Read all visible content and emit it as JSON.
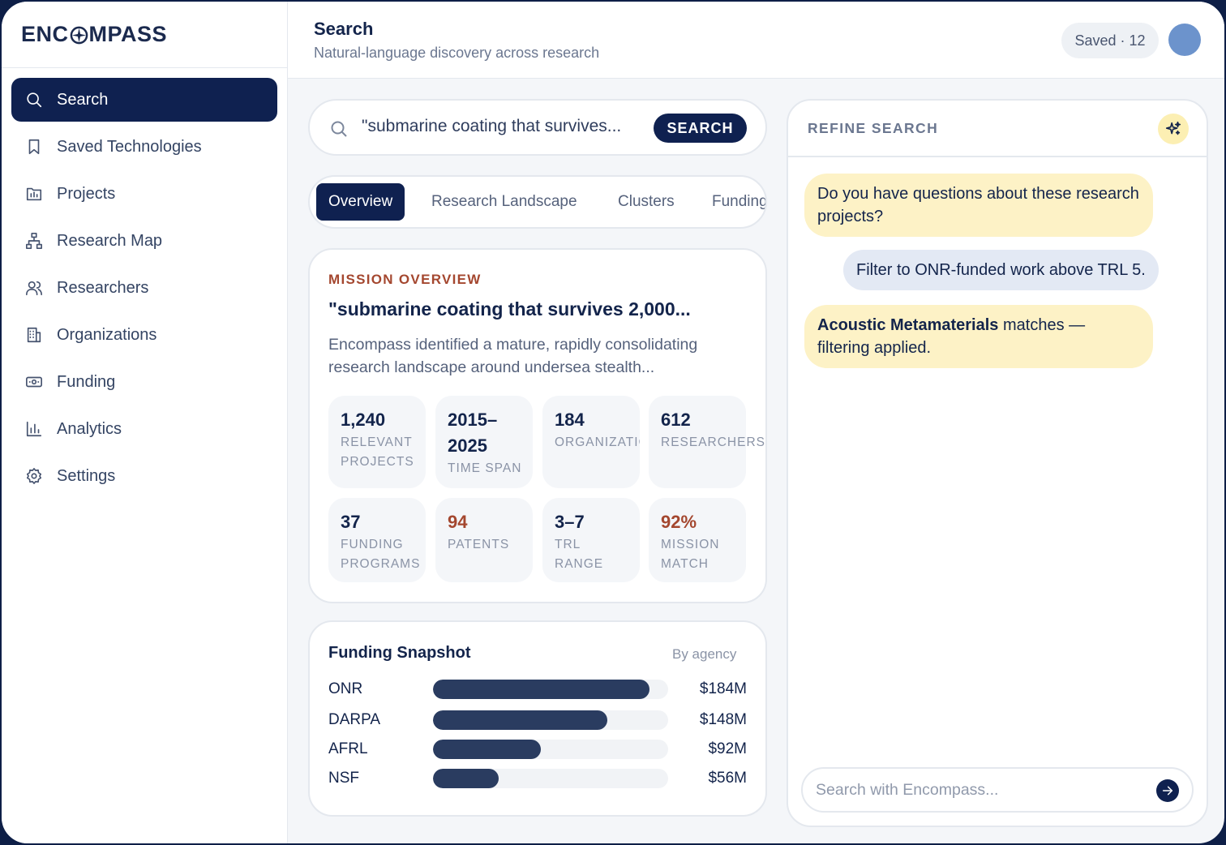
{
  "brand": {
    "logo_left": "ENC",
    "logo_right": "MPASS"
  },
  "sidebar": {
    "items": [
      {
        "label": "Search",
        "icon": "search-icon",
        "active": true
      },
      {
        "label": "Saved Technologies",
        "icon": "bookmark-icon"
      },
      {
        "label": "Projects",
        "icon": "folder-chart-icon"
      },
      {
        "label": "Research Map",
        "icon": "network-icon"
      },
      {
        "label": "Researchers",
        "icon": "users-icon"
      },
      {
        "label": "Organizations",
        "icon": "building-icon"
      },
      {
        "label": "Funding",
        "icon": "banknote-icon"
      },
      {
        "label": "Analytics",
        "icon": "bar-chart-icon"
      },
      {
        "label": "Settings",
        "icon": "gear-icon"
      }
    ]
  },
  "header": {
    "title": "Search",
    "subtitle": "Natural-language discovery across research",
    "saved_label": "Saved · 12"
  },
  "search": {
    "query": "\"submarine coating that survives...",
    "button_label": "SEARCH"
  },
  "tabs": [
    {
      "label": "Overview",
      "active": true
    },
    {
      "label": "Research Landscape"
    },
    {
      "label": "Clusters"
    },
    {
      "label": "Funding"
    }
  ],
  "overview": {
    "eyebrow": "MISSION OVERVIEW",
    "title": "\"submarine coating that survives 2,000...",
    "description": "Encompass identified a mature, rapidly consolidating research landscape around undersea stealth...",
    "stats": [
      {
        "value": "1,240",
        "label": "RELEVANT PROJECTS"
      },
      {
        "value": "2015–2025",
        "label": "TIME SPAN"
      },
      {
        "value": "184",
        "label": "ORGANIZATIONS"
      },
      {
        "value": "612",
        "label": "RESEARCHERS"
      },
      {
        "value": "37",
        "label": "FUNDING PROGRAMS"
      },
      {
        "value": "94",
        "label": "PATENTS",
        "accent": true
      },
      {
        "value": "3–7",
        "label": "TRL RANGE"
      },
      {
        "value": "92%",
        "label": "MISSION MATCH",
        "accent": true
      }
    ]
  },
  "funding": {
    "title": "Funding Snapshot",
    "subtitle": "By agency",
    "rows": [
      {
        "agency": "ONR",
        "amount": "$184M",
        "fraction": 0.92
      },
      {
        "agency": "DARPA",
        "amount": "$148M",
        "fraction": 0.74
      },
      {
        "agency": "AFRL",
        "amount": "$92M",
        "fraction": 0.46
      },
      {
        "agency": "NSF",
        "amount": "$56M",
        "fraction": 0.28
      }
    ]
  },
  "refine": {
    "label": "REFINE SEARCH",
    "messages": [
      {
        "role": "bot",
        "text": "Do you have questions about these research projects?"
      },
      {
        "role": "user",
        "text": "Filter to ONR-funded work above TRL 5."
      },
      {
        "role": "bot",
        "bold": "Acoustic Metamaterials",
        "text": " matches — filtering applied."
      }
    ],
    "input_placeholder": "Search with Encompass..."
  },
  "colors": {
    "navy": "#0f2150",
    "accent": "#a4472f",
    "bot_bubble": "#fdf2c6",
    "user_bubble": "#e3e9f4",
    "bar_fill": "#2a3c60"
  }
}
